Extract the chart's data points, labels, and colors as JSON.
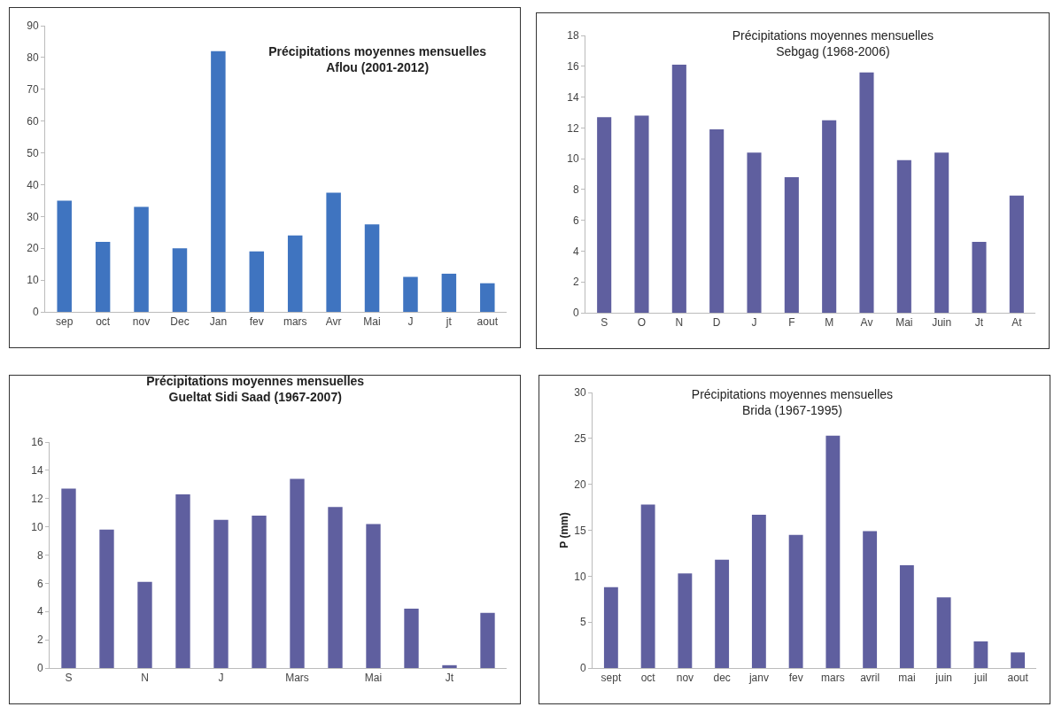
{
  "chart_data": [
    {
      "type": "bar",
      "title": "Précipitations moyennes mensuelles\nAflou (2001-2012)",
      "categories": [
        "sep",
        "oct",
        "nov",
        "Dec",
        "Jan",
        "fev",
        "mars",
        "Avr",
        "Mai",
        "J",
        "jt",
        "aout"
      ],
      "values": [
        35,
        22,
        33,
        20,
        82,
        19,
        24,
        37.5,
        27.5,
        11,
        12,
        9
      ],
      "color": "#3f74c0",
      "ylim": [
        0,
        90
      ],
      "yticks": [
        0,
        10,
        20,
        30,
        40,
        50,
        60,
        70,
        80,
        90
      ],
      "grid": false
    },
    {
      "type": "bar",
      "title": "Précipitations moyennes mensuelles\nSebgag (1968-2006)",
      "categories": [
        "S",
        "O",
        "N",
        "D",
        "J",
        "F",
        "M",
        "Av",
        "Mai",
        "Juin",
        "Jt",
        "At"
      ],
      "values": [
        12.7,
        12.8,
        16.1,
        11.9,
        10.4,
        8.8,
        12.5,
        15.6,
        9.9,
        10.4,
        4.6,
        7.6
      ],
      "color": "#5f5f9f",
      "ylim": [
        0,
        18
      ],
      "yticks": [
        0,
        2,
        4,
        6,
        8,
        10,
        12,
        14,
        16,
        18
      ],
      "grid": false
    },
    {
      "type": "bar",
      "title": "Précipitations moyennes mensuelles\nGueltat Sidi Saad (1967-2007)",
      "categories": [
        "S",
        null,
        "N",
        null,
        "J",
        null,
        "Mars",
        null,
        "Mai",
        null,
        "Jt",
        null
      ],
      "values": [
        12.7,
        9.8,
        6.1,
        12.3,
        10.5,
        10.8,
        13.4,
        11.4,
        10.2,
        4.2,
        0.2,
        3.9
      ],
      "color": "#5f5f9f",
      "ylim": [
        0,
        16
      ],
      "yticks": [
        0,
        2,
        4,
        6,
        8,
        10,
        12,
        14,
        16
      ],
      "grid": false
    },
    {
      "type": "bar",
      "title": "Précipitations moyennes mensuelles\nBrida (1967-1995)",
      "ylabel": "P (mm)",
      "categories": [
        "sept",
        "oct",
        "nov",
        "dec",
        "janv",
        "fev",
        "mars",
        "avril",
        "mai",
        "juin",
        "juil",
        "aout"
      ],
      "values": [
        8.8,
        17.8,
        10.3,
        11.8,
        16.7,
        14.5,
        25.3,
        14.9,
        11.2,
        7.7,
        2.9,
        1.7
      ],
      "color": "#5f5f9f",
      "ylim": [
        0,
        30
      ],
      "yticks": [
        0,
        5,
        10,
        15,
        20,
        25,
        30
      ],
      "grid": false
    }
  ]
}
